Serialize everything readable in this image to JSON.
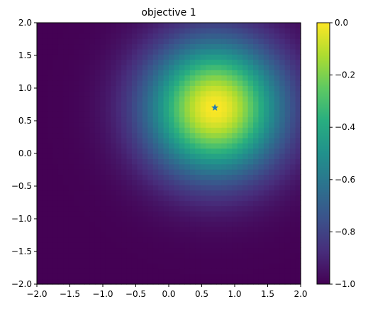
{
  "chart_data": {
    "type": "heatmap",
    "title": "objective 1",
    "xlabel": "",
    "ylabel": "",
    "xlim": [
      -2.0,
      2.0
    ],
    "ylim": [
      -2.0,
      2.0
    ],
    "x_ticks": [
      "-2.0",
      "-1.5",
      "-1.0",
      "-0.5",
      "0.0",
      "0.5",
      "1.0",
      "1.5",
      "2.0"
    ],
    "y_ticks": [
      "-2.0",
      "-1.5",
      "-1.0",
      "-0.5",
      "0.0",
      "0.5",
      "1.0",
      "1.5",
      "2.0"
    ],
    "colorbar": {
      "range": [
        -1.0,
        0.0
      ],
      "ticks": [
        "-1.0",
        "-0.8",
        "-0.6",
        "-0.4",
        "-0.2",
        "0.0"
      ],
      "colormap": "viridis"
    },
    "surface": {
      "formula": "-(1 - exp(-((x-0.7)^2 + (y-0.7)^2)))",
      "peak": [
        0.7,
        0.7
      ],
      "peak_value": 0.0,
      "min_value": -1.0,
      "grid_resolution": 50
    },
    "markers": [
      {
        "x": 0.7,
        "y": 0.7,
        "symbol": "star",
        "color": "#1f77b4"
      }
    ],
    "grid": false,
    "legend": "none"
  }
}
